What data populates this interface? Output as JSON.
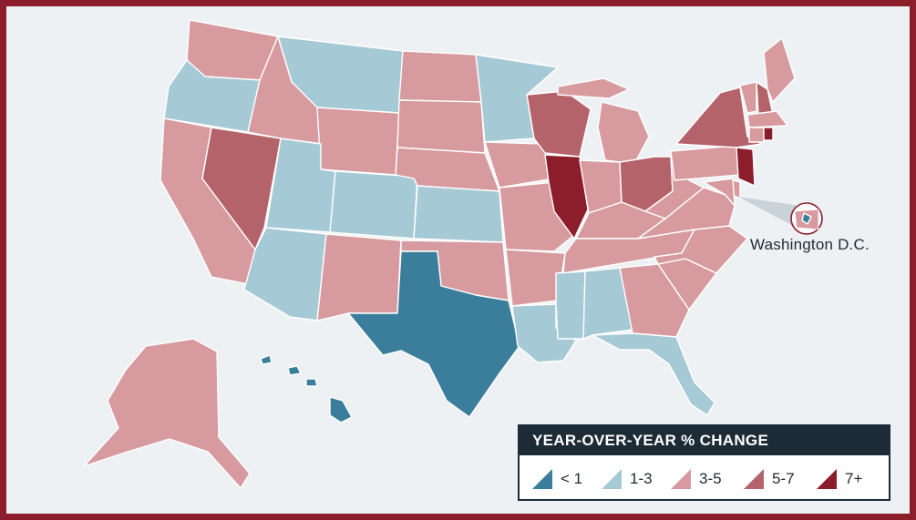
{
  "legend": {
    "title": "YEAR-OVER-YEAR % CHANGE",
    "bins": [
      {
        "label": "< 1",
        "color": "#3a7e9c"
      },
      {
        "label": "1-3",
        "color": "#a6c9d6"
      },
      {
        "label": "3-5",
        "color": "#d79a9f"
      },
      {
        "label": "5-7",
        "color": "#b4636b"
      },
      {
        "label": "7+",
        "color": "#8c1d2b"
      }
    ]
  },
  "callout": {
    "label": "Washington D.C."
  },
  "regions": {
    "WA": "3-5",
    "OR": "1-3",
    "CA": "3-5",
    "NV": "5-7",
    "ID": "3-5",
    "MT": "1-3",
    "WY": "3-5",
    "UT": "1-3",
    "AZ": "1-3",
    "CO": "1-3",
    "NM": "3-5",
    "ND": "3-5",
    "SD": "3-5",
    "NE": "3-5",
    "KS": "1-3",
    "OK": "3-5",
    "TX": "< 1",
    "MN": "1-3",
    "IA": "3-5",
    "MO": "3-5",
    "AR": "3-5",
    "LA": "1-3",
    "WI": "5-7",
    "IL": "7+",
    "MI": "3-5",
    "IN": "3-5",
    "OH": "5-7",
    "KY": "3-5",
    "TN": "3-5",
    "MS": "1-3",
    "AL": "1-3",
    "GA": "3-5",
    "FL": "1-3",
    "SC": "3-5",
    "NC": "3-5",
    "VA": "3-5",
    "WV": "3-5",
    "PA": "3-5",
    "NY": "5-7",
    "VT": "3-5",
    "NH": "5-7",
    "ME": "3-5",
    "MA": "3-5",
    "CT": "3-5",
    "RI": "7+",
    "NJ": "7+",
    "DE": "3-5",
    "MD": "3-5",
    "DC": "< 1",
    "AK": "3-5",
    "HI": "< 1"
  }
}
